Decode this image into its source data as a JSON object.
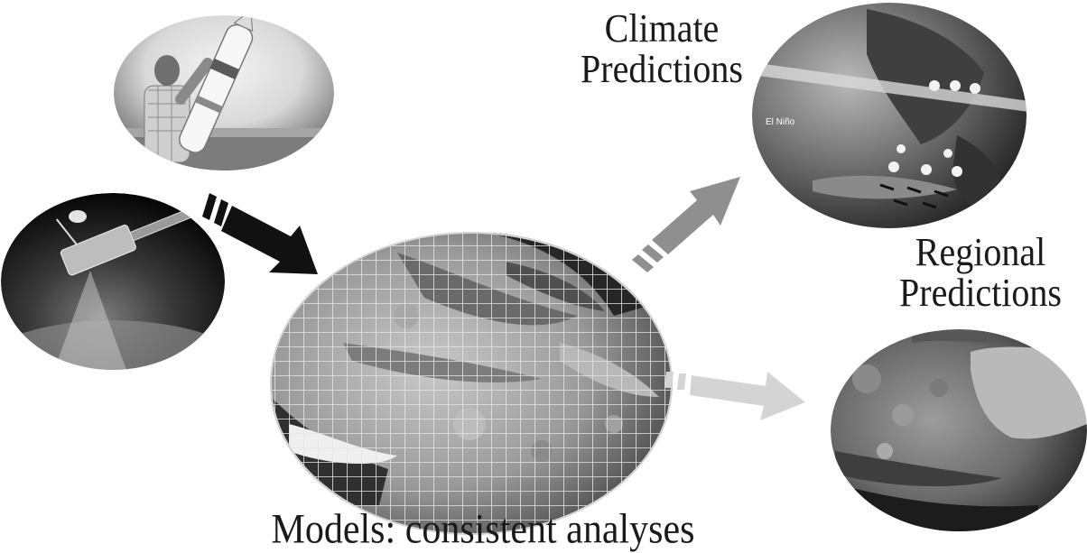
{
  "labels": {
    "climate_line1": "Climate",
    "climate_line2": "Predictions",
    "regional_line1": "Regional",
    "regional_line2": "Predictions",
    "models": "Models: consistent analyses"
  },
  "globe_inset_labels": {
    "el_nino": "El Niño"
  },
  "colors": {
    "background": "#ffffff",
    "text": "#1a1a1a",
    "arrow_input": "#111111",
    "arrow_climate": "#8f8f8f",
    "arrow_regional": "#d4d4d4"
  }
}
